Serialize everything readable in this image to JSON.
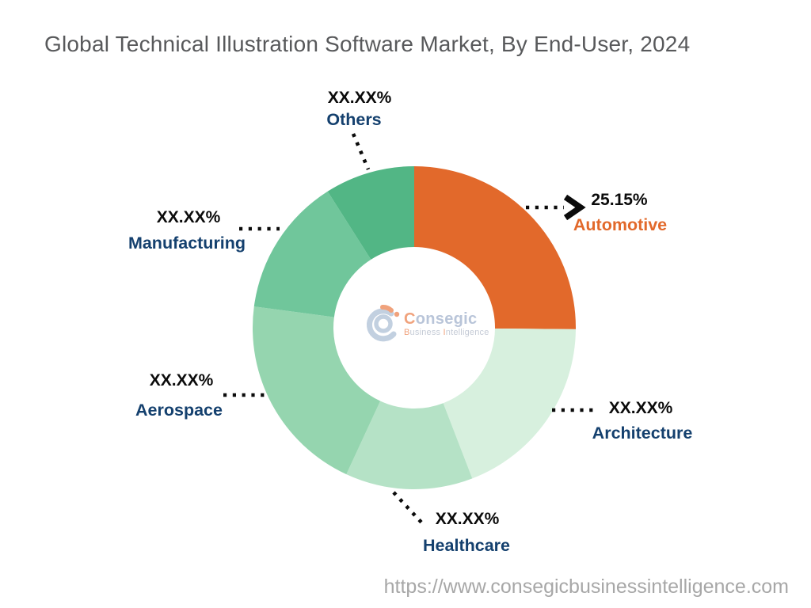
{
  "header": {
    "title": "Global Technical Illustration Software Market, By End-User, 2024",
    "title_color": "#58595B"
  },
  "footer": {
    "url": "https://www.consegicbusinessintelligence.com",
    "color": "#A7A7A7"
  },
  "logo": {
    "name_first": "C",
    "name_rest": "onsegic",
    "sub_b": "B",
    "sub_rest1": "usiness ",
    "sub_i": "I",
    "sub_rest2": "ntelligence"
  },
  "chart_data": {
    "type": "donut",
    "title": "Global Technical Illustration Software Market, By End-User, 2024",
    "start_angle_deg": 0,
    "direction": "clockwise",
    "inner_radius_ratio": 0.5,
    "legend_position": "around",
    "slices": [
      {
        "label": "Automotive",
        "value_pct": 25.15,
        "displayed_value": "25.15%",
        "color": "#E2692B",
        "label_color": "#E2692B"
      },
      {
        "label": "Architecture",
        "value_pct": 19.0,
        "displayed_value": "XX.XX%",
        "color": "#D7F0DE",
        "label_color": "#14406E"
      },
      {
        "label": "Healthcare",
        "value_pct": 12.75,
        "displayed_value": "XX.XX%",
        "color": "#B5E2C6",
        "label_color": "#14406E"
      },
      {
        "label": "Aerospace",
        "value_pct": 20.2,
        "displayed_value": "XX.XX%",
        "color": "#95D5AF",
        "label_color": "#14406E"
      },
      {
        "label": "Manufacturing",
        "value_pct": 13.9,
        "displayed_value": "XX.XX%",
        "color": "#70C69B",
        "label_color": "#14406E"
      },
      {
        "label": "Others",
        "value_pct": 9.0,
        "displayed_value": "XX.XX%",
        "color": "#52B685",
        "label_color": "#14406E"
      }
    ]
  }
}
